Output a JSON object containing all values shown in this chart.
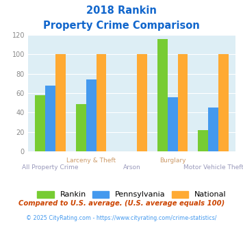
{
  "title_line1": "2018 Rankin",
  "title_line2": "Property Crime Comparison",
  "categories": [
    "All Property Crime",
    "Larceny & Theft",
    "Arson",
    "Burglary",
    "Motor Vehicle Theft"
  ],
  "rankin": [
    58,
    49,
    0,
    116,
    22
  ],
  "pennsylvania": [
    68,
    74,
    0,
    56,
    45
  ],
  "national": [
    100,
    100,
    100,
    100,
    100
  ],
  "rankin_color": "#77cc33",
  "pennsylvania_color": "#4499ee",
  "national_color": "#ffaa33",
  "bg_color": "#ddeef5",
  "ylim": [
    0,
    120
  ],
  "yticks": [
    0,
    20,
    40,
    60,
    80,
    100,
    120
  ],
  "title_color": "#1166cc",
  "xlabel_color_top": "#cc9966",
  "xlabel_color_bottom": "#9999bb",
  "top_labels": {
    "Larceny & Theft": 1,
    "Burglary": 3
  },
  "bottom_labels": {
    "All Property Crime": 0,
    "Arson": 2,
    "Motor Vehicle Theft": 4
  },
  "legend_labels": [
    "Rankin",
    "Pennsylvania",
    "National"
  ],
  "footnote1": "Compared to U.S. average. (U.S. average equals 100)",
  "footnote2": "© 2025 CityRating.com - https://www.cityrating.com/crime-statistics/",
  "footnote1_color": "#cc4400",
  "footnote2_color": "#4499ee"
}
